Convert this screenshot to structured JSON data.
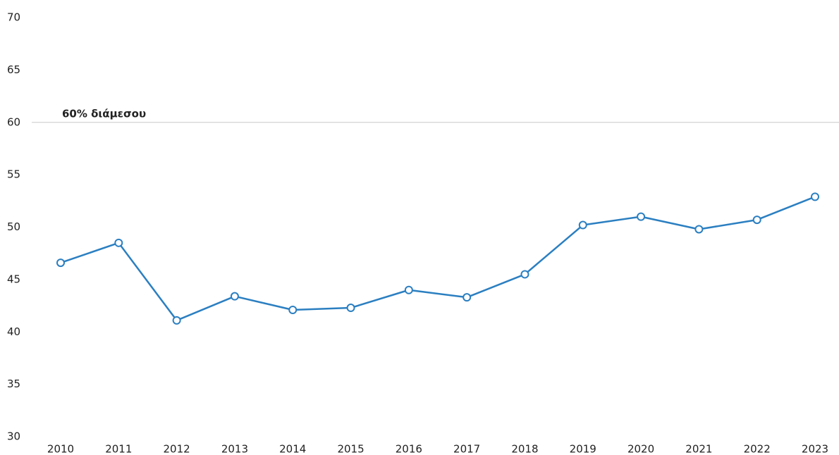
{
  "chart_data": {
    "type": "line",
    "categories": [
      "2010",
      "2011",
      "2012",
      "2013",
      "2014",
      "2015",
      "2016",
      "2017",
      "2018",
      "2019",
      "2020",
      "2021",
      "2022",
      "2023"
    ],
    "series": [
      {
        "color": "#2b7fc1",
        "values": [
          46.6,
          48.5,
          41.1,
          43.4,
          42.1,
          42.3,
          44.0,
          43.3,
          45.5,
          50.2,
          51.0,
          49.8,
          50.7,
          52.9
        ]
      }
    ],
    "ylim": [
      30,
      70
    ],
    "yticks": [
      30,
      35,
      40,
      45,
      50,
      55,
      60,
      65,
      70
    ],
    "grid": false,
    "reference_line": {
      "value": 60,
      "label": "60% διάμεσου"
    }
  }
}
